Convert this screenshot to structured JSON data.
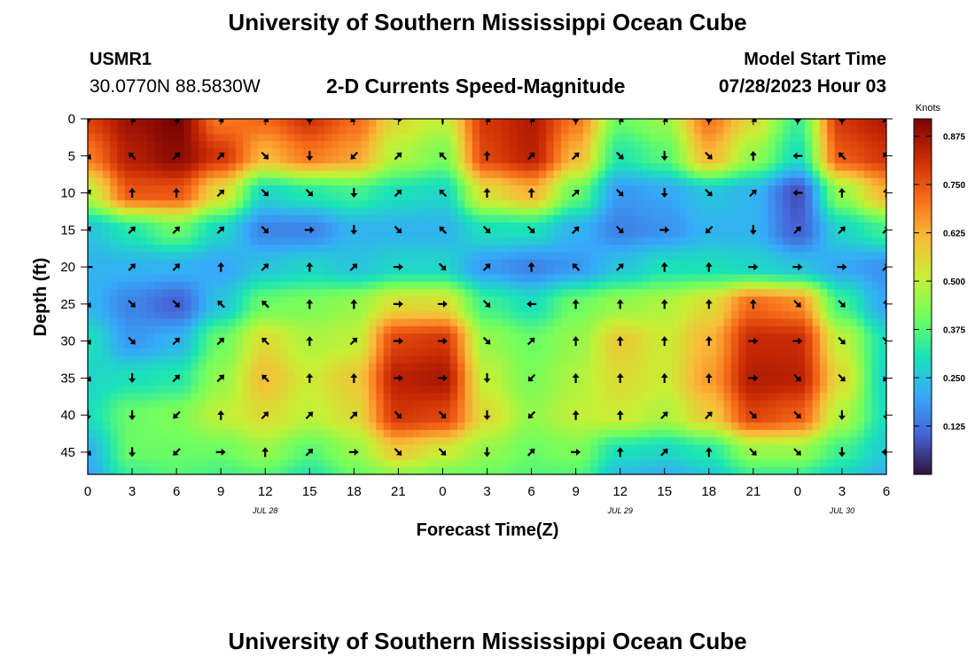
{
  "chart_data": {
    "type": "heatmap",
    "title": "University of Southern Mississippi Ocean Cube",
    "footer_title": "University of Southern Mississippi Ocean Cube",
    "station": "USMR1",
    "coordinates": "30.0770N  88.5830W",
    "subtitle": "2-D Currents Speed-Magnitude",
    "model_start_label": "Model Start Time",
    "model_start_value": "07/28/2023 Hour 03",
    "xlabel": "Forecast Time(Z)",
    "ylabel": "Depth (ft)",
    "x_tick_labels": [
      "0",
      "3",
      "6",
      "9",
      "12",
      "15",
      "18",
      "21",
      "0",
      "3",
      "6",
      "9",
      "12",
      "15",
      "18",
      "21",
      "0",
      "3",
      "6"
    ],
    "x_hours": [
      0,
      3,
      6,
      9,
      12,
      15,
      18,
      21,
      24,
      27,
      30,
      33,
      36,
      39,
      42,
      45,
      48,
      51,
      54
    ],
    "date_labels": [
      {
        "label": "JUL 28",
        "hour": 12
      },
      {
        "label": "JUL 29",
        "hour": 36
      },
      {
        "label": "JUL 30",
        "hour": 51
      }
    ],
    "y_tick_labels": [
      "0",
      "5",
      "10",
      "15",
      "20",
      "25",
      "30",
      "35",
      "40",
      "45"
    ],
    "y_ticks": [
      0,
      5,
      10,
      15,
      20,
      25,
      30,
      35,
      40,
      45
    ],
    "xlim": [
      0,
      54
    ],
    "ylim": [
      0,
      48
    ],
    "colorbar": {
      "unit": "Knots",
      "ticks": [
        "0.875",
        "0.750",
        "0.625",
        "0.500",
        "0.375",
        "0.250",
        "0.125"
      ],
      "tick_values": [
        0.875,
        0.75,
        0.625,
        0.5,
        0.375,
        0.25,
        0.125
      ],
      "range": [
        0,
        0.92
      ],
      "colors": [
        "#30123b",
        "#4662d7",
        "#36aaf9",
        "#1ae4b6",
        "#72fe5e",
        "#c8ef34",
        "#faba39",
        "#f66b19",
        "#ca2a04",
        "#7a0403"
      ]
    },
    "speed_grid": {
      "hours": [
        0,
        3,
        6,
        9,
        12,
        15,
        18,
        21,
        24,
        27,
        30,
        33,
        36,
        39,
        42,
        45,
        48,
        51,
        54
      ],
      "depths_ft": [
        0,
        5,
        10,
        15,
        20,
        25,
        30,
        35,
        40,
        45,
        48
      ],
      "values_knots": [
        [
          0.78,
          0.88,
          0.92,
          0.7,
          0.72,
          0.8,
          0.72,
          0.55,
          0.5,
          0.8,
          0.85,
          0.7,
          0.4,
          0.45,
          0.7,
          0.55,
          0.35,
          0.8,
          0.85
        ],
        [
          0.7,
          0.85,
          0.9,
          0.8,
          0.62,
          0.7,
          0.65,
          0.48,
          0.42,
          0.78,
          0.84,
          0.62,
          0.32,
          0.38,
          0.62,
          0.45,
          0.3,
          0.75,
          0.8
        ],
        [
          0.5,
          0.75,
          0.75,
          0.55,
          0.28,
          0.32,
          0.35,
          0.3,
          0.28,
          0.55,
          0.62,
          0.4,
          0.18,
          0.2,
          0.25,
          0.22,
          0.08,
          0.45,
          0.62
        ],
        [
          0.25,
          0.32,
          0.4,
          0.28,
          0.15,
          0.15,
          0.22,
          0.22,
          0.22,
          0.3,
          0.3,
          0.22,
          0.15,
          0.17,
          0.22,
          0.22,
          0.1,
          0.28,
          0.35
        ],
        [
          0.22,
          0.22,
          0.22,
          0.2,
          0.25,
          0.28,
          0.25,
          0.28,
          0.28,
          0.18,
          0.15,
          0.18,
          0.25,
          0.3,
          0.3,
          0.28,
          0.25,
          0.2,
          0.17
        ],
        [
          0.22,
          0.15,
          0.1,
          0.25,
          0.4,
          0.42,
          0.45,
          0.55,
          0.55,
          0.35,
          0.3,
          0.4,
          0.45,
          0.48,
          0.55,
          0.72,
          0.68,
          0.35,
          0.2
        ],
        [
          0.3,
          0.18,
          0.22,
          0.4,
          0.55,
          0.48,
          0.5,
          0.78,
          0.8,
          0.45,
          0.4,
          0.45,
          0.58,
          0.52,
          0.62,
          0.82,
          0.82,
          0.5,
          0.3
        ],
        [
          0.28,
          0.3,
          0.32,
          0.45,
          0.6,
          0.52,
          0.58,
          0.84,
          0.86,
          0.5,
          0.42,
          0.48,
          0.55,
          0.52,
          0.65,
          0.85,
          0.84,
          0.55,
          0.28
        ],
        [
          0.3,
          0.4,
          0.42,
          0.5,
          0.55,
          0.5,
          0.55,
          0.8,
          0.78,
          0.55,
          0.45,
          0.5,
          0.52,
          0.48,
          0.58,
          0.78,
          0.74,
          0.48,
          0.3
        ],
        [
          0.22,
          0.4,
          0.4,
          0.4,
          0.45,
          0.38,
          0.45,
          0.58,
          0.52,
          0.45,
          0.4,
          0.42,
          0.3,
          0.28,
          0.32,
          0.45,
          0.45,
          0.35,
          0.26
        ],
        [
          0.2,
          0.35,
          0.38,
          0.36,
          0.38,
          0.32,
          0.4,
          0.45,
          0.42,
          0.4,
          0.38,
          0.38,
          0.24,
          0.22,
          0.26,
          0.35,
          0.35,
          0.28,
          0.22
        ]
      ]
    },
    "vectors": {
      "hours": [
        0,
        3,
        6,
        9,
        12,
        15,
        18,
        21,
        24,
        27,
        30,
        33,
        36,
        39,
        42,
        45,
        48,
        51,
        54
      ],
      "depths_ft": [
        0,
        5,
        10,
        15,
        20,
        25,
        30,
        35,
        40,
        45
      ],
      "directions_deg": [
        [
          180,
          135,
          150,
          150,
          135,
          180,
          225,
          90,
          0,
          135,
          135,
          180,
          135,
          135,
          180,
          135,
          180,
          180,
          45
        ],
        [
          135,
          315,
          45,
          45,
          135,
          180,
          225,
          45,
          315,
          0,
          45,
          45,
          135,
          180,
          135,
          0,
          270,
          315,
          315
        ],
        [
          45,
          0,
          0,
          45,
          135,
          135,
          180,
          45,
          315,
          0,
          0,
          45,
          135,
          180,
          135,
          45,
          270,
          0,
          0
        ],
        [
          45,
          45,
          45,
          45,
          135,
          90,
          180,
          135,
          315,
          135,
          135,
          45,
          135,
          90,
          225,
          180,
          45,
          45,
          45
        ],
        [
          270,
          45,
          45,
          0,
          45,
          0,
          45,
          90,
          135,
          45,
          0,
          315,
          45,
          0,
          0,
          90,
          90,
          90,
          45
        ],
        [
          135,
          135,
          135,
          315,
          315,
          0,
          0,
          90,
          90,
          135,
          270,
          0,
          0,
          0,
          0,
          0,
          135,
          135,
          0
        ],
        [
          135,
          135,
          45,
          45,
          315,
          0,
          45,
          90,
          90,
          135,
          45,
          0,
          0,
          0,
          0,
          90,
          90,
          135,
          135
        ],
        [
          135,
          180,
          45,
          45,
          315,
          0,
          0,
          90,
          90,
          180,
          225,
          0,
          0,
          0,
          0,
          90,
          135,
          135,
          225
        ],
        [
          180,
          180,
          225,
          0,
          45,
          45,
          45,
          135,
          135,
          180,
          225,
          0,
          0,
          45,
          45,
          135,
          135,
          180,
          180
        ],
        [
          135,
          180,
          225,
          90,
          0,
          45,
          90,
          135,
          135,
          180,
          45,
          90,
          0,
          45,
          0,
          135,
          135,
          180,
          270
        ]
      ]
    }
  }
}
